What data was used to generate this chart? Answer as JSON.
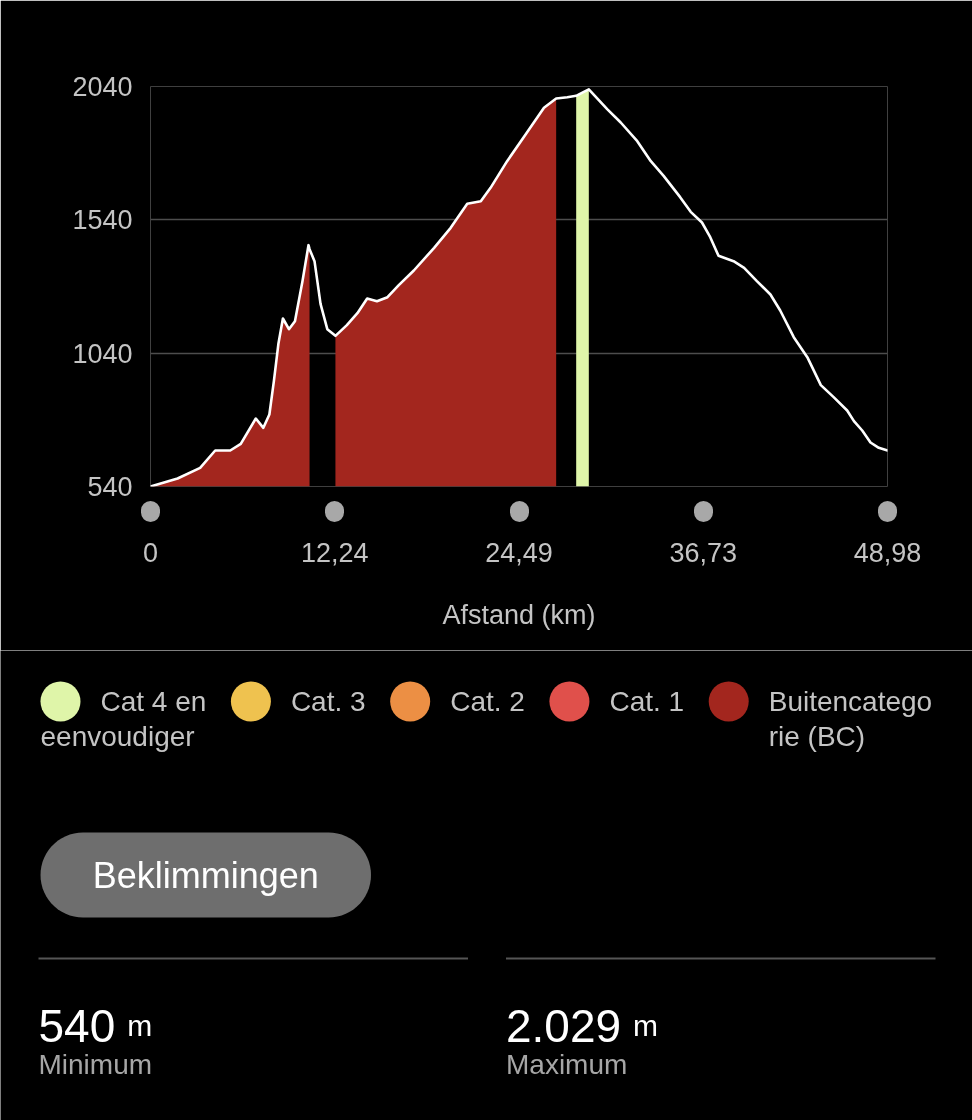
{
  "chart_data": {
    "type": "area",
    "xlabel": "Afstand (km)",
    "x": [
      0,
      1.8,
      3.3,
      4.3,
      5.3,
      6.0,
      7.0,
      7.5,
      7.9,
      8.2,
      8.5,
      8.8,
      9.2,
      9.6,
      10.1,
      10.5,
      10.57,
      10.9,
      11.3,
      11.75,
      12.29,
      13.05,
      13.75,
      14.4,
      15.05,
      15.75,
      16.5,
      17.5,
      18.85,
      19.95,
      21.05,
      21.95,
      22.6,
      23.7,
      24.8,
      26.15,
      26.96,
      27.7,
      28.29,
      28.8,
      29.13,
      30.35,
      31.25,
      32.35,
      33.25,
      34.1,
      35.2,
      35.9,
      36.65,
      37.2,
      37.75,
      38.75,
      39.45,
      40.3,
      41.2,
      41.85,
      42.75,
      43.65,
      44.55,
      45.4,
      46.3,
      46.75,
      47.3,
      47.85,
      48.4,
      48.98
    ],
    "xlim": [
      0,
      48.98
    ],
    "xticks": [
      0,
      {
        "value": 12.24,
        "label": "12,24"
      },
      {
        "value": 24.49,
        "label": "24,49"
      },
      {
        "value": 36.73,
        "label": "36,73"
      },
      {
        "value": 48.98,
        "label": "48,98"
      }
    ],
    "ylim": [
      540,
      2040
    ],
    "yticks": [
      540,
      1040,
      1540,
      2040
    ],
    "grid": "y",
    "legend": "bottom",
    "line_style": "solid",
    "series": [
      {
        "name": "Cat 4 en eenvoudiger",
        "color": "#dff5a9",
        "values": [
          null,
          null,
          null,
          null,
          null,
          null,
          null,
          null,
          null,
          null,
          null,
          null,
          null,
          null,
          null,
          null,
          null,
          null,
          null,
          null,
          null,
          null,
          null,
          null,
          null,
          null,
          null,
          null,
          null,
          null,
          null,
          null,
          null,
          null,
          null,
          null,
          null,
          null,
          2005,
          2020,
          2029,
          null,
          null,
          null,
          null,
          null,
          null,
          null,
          null,
          null,
          null,
          null,
          null,
          null,
          null,
          null,
          null,
          null,
          null,
          null,
          null,
          null,
          null,
          null,
          null,
          null
        ]
      },
      {
        "name": "Cat. 3",
        "color": "#efc24f",
        "values": [
          null,
          null,
          null,
          null,
          null,
          null,
          null,
          null,
          null,
          null,
          null,
          null,
          null,
          null,
          null,
          null,
          null,
          null,
          null,
          null,
          null,
          null,
          null,
          null,
          null,
          null,
          null,
          null,
          null,
          null,
          null,
          null,
          null,
          null,
          null,
          null,
          null,
          null,
          null,
          null,
          null,
          null,
          null,
          null,
          null,
          null,
          null,
          null,
          null,
          null,
          null,
          null,
          null,
          null,
          null,
          null,
          null,
          null,
          null,
          null,
          null,
          null,
          null,
          null,
          null,
          null
        ]
      },
      {
        "name": "Cat. 2",
        "color": "#ec8f44",
        "values": [
          null,
          null,
          null,
          null,
          null,
          null,
          null,
          null,
          null,
          null,
          null,
          null,
          null,
          null,
          null,
          null,
          null,
          null,
          null,
          null,
          null,
          null,
          null,
          null,
          null,
          null,
          null,
          null,
          null,
          null,
          null,
          null,
          null,
          null,
          null,
          null,
          null,
          null,
          null,
          null,
          null,
          null,
          null,
          null,
          null,
          null,
          null,
          null,
          null,
          null,
          null,
          null,
          null,
          null,
          null,
          null,
          null,
          null,
          null,
          null,
          null,
          null,
          null,
          null,
          null,
          null
        ]
      },
      {
        "name": "Cat. 1",
        "color": "#e0504b",
        "values": [
          null,
          null,
          null,
          null,
          null,
          null,
          null,
          null,
          null,
          null,
          null,
          null,
          null,
          null,
          null,
          null,
          null,
          null,
          null,
          null,
          null,
          null,
          null,
          null,
          null,
          null,
          null,
          null,
          null,
          null,
          null,
          null,
          null,
          null,
          null,
          null,
          null,
          null,
          null,
          null,
          null,
          null,
          null,
          null,
          null,
          null,
          null,
          null,
          null,
          null,
          null,
          null,
          null,
          null,
          null,
          null,
          null,
          null,
          null,
          null,
          null,
          null,
          null,
          null,
          null,
          null
        ]
      },
      {
        "name": "Buitencategorie (BC)",
        "color": "#a3261e",
        "values": [
          540,
          570,
          610,
          675,
          675,
          700,
          795,
          760,
          810,
          935,
          1075,
          1170,
          1130,
          1160,
          1310,
          1445,
          1430,
          null,
          null,
          null,
          1105,
          1145,
          1190,
          1245,
          1235,
          1250,
          1295,
          1350,
          1435,
          1510,
          1600,
          1610,
          1660,
          1760,
          1850,
          1960,
          1995,
          null,
          null,
          null,
          null,
          null,
          null,
          null,
          null,
          null,
          null,
          null,
          null,
          null,
          null,
          null,
          null,
          null,
          null,
          null,
          null,
          null,
          null,
          null,
          null,
          null,
          null,
          null,
          null,
          null
        ]
      },
      {
        "type": "line",
        "color": "#ffffff",
        "values": [
          540,
          570,
          610,
          675,
          675,
          700,
          795,
          760,
          810,
          935,
          1075,
          1170,
          1130,
          1160,
          1310,
          1445,
          1430,
          1385,
          1225,
          1130,
          1105,
          1145,
          1190,
          1245,
          1235,
          1250,
          1295,
          1350,
          1435,
          1510,
          1600,
          1610,
          1660,
          1760,
          1850,
          1960,
          1995,
          2000,
          2005,
          2020,
          2029,
          1955,
          1905,
          1835,
          1760,
          1705,
          1625,
          1570,
          1530,
          1475,
          1405,
          1385,
          1360,
          1310,
          1260,
          1200,
          1100,
          1025,
          920,
          875,
          825,
          785,
          750,
          705,
          685,
          675
        ]
      }
    ],
    "annotations": [
      "Beklimmingen",
      "540 m",
      "Minimum",
      "2.029 m",
      "Maximum"
    ]
  }
}
